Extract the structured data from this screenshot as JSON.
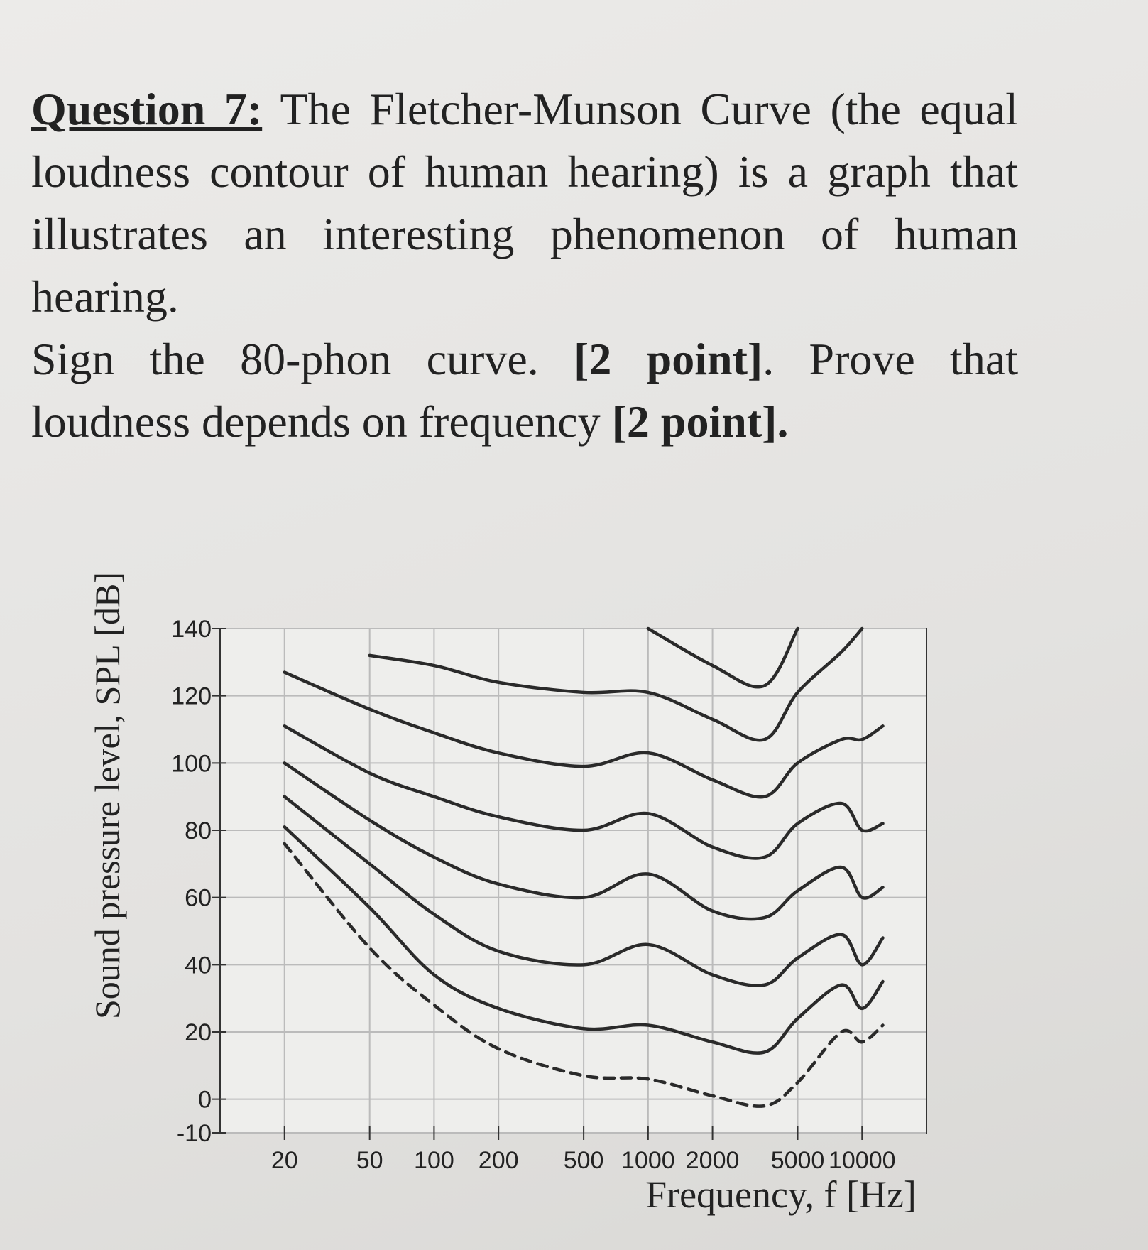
{
  "question": {
    "label": "Question 7:",
    "intro": "The Fletcher-Munson Curve (the equal loudness contour of human hearing) is a graph that illustrates an interesting phenomenon of human hearing.",
    "task": [
      "Sign the 80-phon curve.",
      "[2 point]",
      ". Prove that loudness depends on frequency",
      "[2 point]",
      "."
    ]
  },
  "chart_data": {
    "type": "line",
    "x_label": "Frequency, f [Hz]",
    "y_label": "Sound pressure level, SPL [dB]",
    "x": [
      20,
      50,
      100,
      200,
      500,
      1000,
      2000,
      3500,
      5000,
      8000,
      10000,
      12500
    ],
    "log_x": true,
    "grid": true,
    "xlim": [
      10,
      20000
    ],
    "xticks": [
      20,
      50,
      100,
      200,
      500,
      1000,
      2000,
      5000,
      10000
    ],
    "ylim": [
      -10,
      140
    ],
    "yticks": [
      -10,
      0,
      20,
      40,
      60,
      80,
      100,
      120,
      140
    ],
    "series": [
      {
        "color": "#2a2a2a",
        "style": "dashed",
        "values": [
          76,
          45,
          28,
          15,
          7,
          6,
          1,
          -2,
          5,
          20,
          17,
          22
        ]
      },
      {
        "color": "#2a2a2a",
        "values": [
          81,
          57,
          37,
          27,
          21,
          22,
          17,
          14,
          24,
          34,
          27,
          35
        ]
      },
      {
        "color": "#2a2a2a",
        "values": [
          90,
          70,
          55,
          44,
          40,
          46,
          37,
          34,
          42,
          49,
          40,
          48
        ]
      },
      {
        "color": "#2a2a2a",
        "values": [
          100,
          83,
          72,
          64,
          60,
          67,
          56,
          54,
          62,
          69,
          60,
          63
        ]
      },
      {
        "color": "#2a2a2a",
        "values": [
          111,
          97,
          90,
          84,
          80,
          85,
          75,
          72,
          82,
          88,
          80,
          82
        ]
      },
      {
        "color": "#2a2a2a",
        "values": [
          127,
          116,
          109,
          103,
          99,
          103,
          95,
          90,
          100,
          107,
          107,
          111
        ]
      },
      {
        "color": "#2a2a2a",
        "values": [
          null,
          132,
          129,
          124,
          121,
          121,
          113,
          107,
          121,
          133,
          140,
          null
        ]
      },
      {
        "color": "#2a2a2a",
        "values": [
          null,
          null,
          null,
          null,
          null,
          140,
          129,
          123,
          140,
          null,
          null,
          null
        ]
      }
    ]
  }
}
